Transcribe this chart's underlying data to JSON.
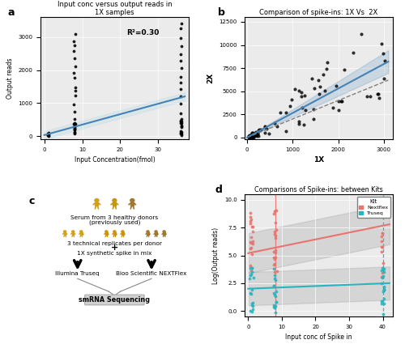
{
  "panel_a": {
    "title": "Input conc versus output reads in\n1X samples",
    "xlabel": "Input Concentration(fmol)",
    "ylabel": "Output reads",
    "r2_text": "R²=0.30",
    "bg_color": "#ebebeb",
    "xlim": [
      -1,
      38
    ],
    "ylim": [
      -100,
      3600
    ],
    "xticks": [
      0,
      10,
      20,
      30
    ],
    "yticks": [
      0,
      1000,
      2000,
      3000
    ]
  },
  "panel_b": {
    "title": "Comparison of spike-ins: 1X Vs  2X",
    "xlabel": "1X",
    "ylabel": "2X",
    "bg_color": "#ebebeb",
    "xlim": [
      -50,
      3200
    ],
    "ylim": [
      -200,
      13000
    ],
    "xticks": [
      0,
      1000,
      2000,
      3000
    ],
    "yticks": [
      0,
      2500,
      5000,
      7500,
      10000,
      12500
    ]
  },
  "panel_d": {
    "title": "Comparisons of Spike-ins: between Kits",
    "xlabel": "Input conc of Spike in",
    "ylabel": "Log(Output reads)",
    "bg_color": "#ebebeb",
    "nextflex_color": "#e8736f",
    "truseq_color": "#26b5c0",
    "xlim": [
      -1,
      43
    ],
    "ylim": [
      -0.5,
      10.5
    ],
    "yticks": [
      0.0,
      2.5,
      5.0,
      7.5,
      10.0
    ],
    "xticks": [
      0,
      10,
      20,
      30,
      40
    ]
  }
}
